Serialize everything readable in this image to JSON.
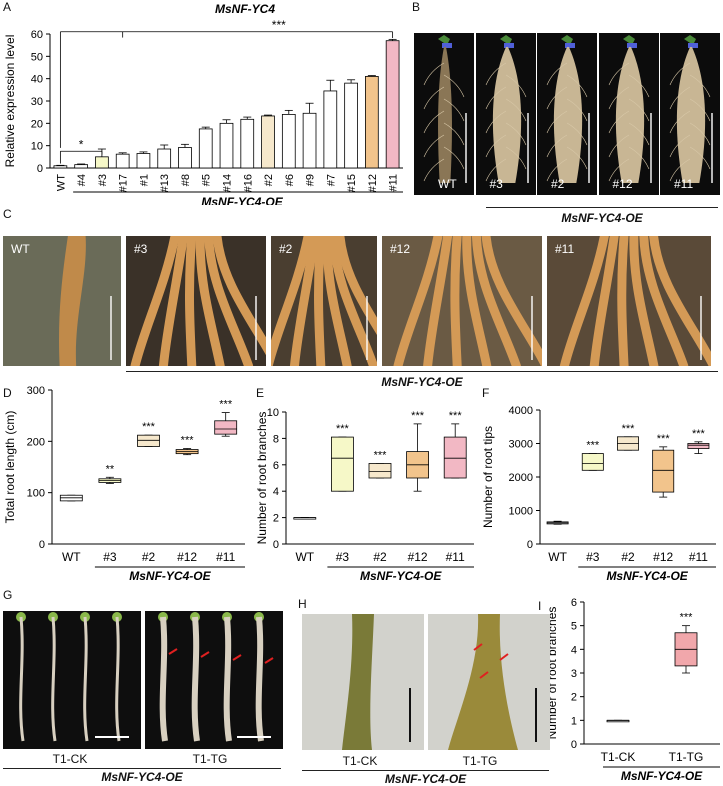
{
  "panel_letters": [
    "A",
    "B",
    "C",
    "D",
    "E",
    "F",
    "G",
    "H",
    "I"
  ],
  "panel_a": {
    "title": "MsNF-YC4",
    "group_label": "MsNF-YC4-OE",
    "sig_wt_3": "*",
    "sig_all": "***"
  },
  "panel_b": {
    "samples": [
      "WT",
      "#3",
      "#2",
      "#12",
      "#11"
    ],
    "group_label": "MsNF-YC4-OE"
  },
  "panel_c": {
    "samples": [
      "WT",
      "#3",
      "#2",
      "#12",
      "#11"
    ],
    "group_label": "MsNF-YC4-OE"
  },
  "panel_g": {
    "samples": [
      "T1-CK",
      "T1-TG"
    ],
    "group_label": "MsNF-YC4-OE"
  },
  "panel_h": {
    "samples": [
      "T1-CK",
      "T1-TG"
    ],
    "group_label": "MsNF-YC4-OE"
  },
  "colors": {
    "WT": "#ffffff",
    "#3": "#f6f8c8",
    "#2": "#f6e8cc",
    "#12": "#f2c48c",
    "#11": "#f2b8c4",
    "T1-TG": "#f1a7ab"
  },
  "chart_data": [
    {
      "id": "A",
      "type": "bar",
      "title": "MsNF-YC4",
      "ylabel": "Relative expression level",
      "ylim": [
        0,
        60
      ],
      "yticks": [
        0,
        10,
        20,
        30,
        40,
        50,
        60
      ],
      "categories": [
        "WT",
        "#4",
        "#3",
        "#17",
        "#1",
        "#13",
        "#8",
        "#5",
        "#14",
        "#16",
        "#2",
        "#6",
        "#9",
        "#7",
        "#15",
        "#12",
        "#11"
      ],
      "values": [
        1,
        1.5,
        5,
        6.2,
        6.5,
        8.5,
        9.2,
        17.5,
        20,
        21.8,
        23.3,
        24,
        24.5,
        34.5,
        38,
        41,
        57
      ],
      "errors": [
        0.2,
        0.3,
        3.5,
        0.6,
        0.7,
        1.8,
        1.4,
        0.8,
        1.6,
        1.0,
        0.4,
        1.8,
        4.5,
        4.8,
        1.5,
        0.4,
        0.6
      ],
      "bar_colors": [
        "#ffffff",
        "#ffffff",
        "#f6f8c8",
        "#ffffff",
        "#ffffff",
        "#ffffff",
        "#ffffff",
        "#ffffff",
        "#ffffff",
        "#ffffff",
        "#f6e8cc",
        "#ffffff",
        "#ffffff",
        "#ffffff",
        "#ffffff",
        "#f2c48c",
        "#f2b8c4"
      ],
      "significance": [
        {
          "label": "*"
        },
        {
          "label": "***"
        }
      ],
      "group_label": "MsNF-YC4-OE"
    },
    {
      "id": "D",
      "type": "box",
      "ylabel": "Total root length (cm)",
      "ylim": [
        0,
        300
      ],
      "yticks": [
        0,
        100,
        200,
        300
      ],
      "categories": [
        "WT",
        "#3",
        "#2",
        "#12",
        "#11"
      ],
      "boxes": [
        {
          "min": 84,
          "q1": 84,
          "median": 90,
          "q3": 95,
          "max": 95
        },
        {
          "min": 118,
          "q1": 120,
          "median": 124,
          "q3": 127,
          "max": 130
        },
        {
          "min": 190,
          "q1": 190,
          "median": 202,
          "q3": 212,
          "max": 212
        },
        {
          "min": 174,
          "q1": 176,
          "median": 180,
          "q3": 184,
          "max": 186
        },
        {
          "min": 210,
          "q1": 214,
          "median": 224,
          "q3": 240,
          "max": 256
        }
      ],
      "significance": [
        "",
        "**",
        "***",
        "***",
        "***"
      ],
      "group_label": "MsNF-YC4-OE"
    },
    {
      "id": "E",
      "type": "box",
      "ylabel": "Number of root branches",
      "ylim": [
        0,
        10
      ],
      "yticks": [
        0,
        2,
        4,
        6,
        8,
        10
      ],
      "categories": [
        "WT",
        "#3",
        "#2",
        "#12",
        "#11"
      ],
      "boxes": [
        {
          "min": 2,
          "q1": 2,
          "median": 2,
          "q3": 2,
          "max": 2
        },
        {
          "min": 4,
          "q1": 4,
          "median": 6.5,
          "q3": 8.1,
          "max": 8.1
        },
        {
          "min": 5,
          "q1": 5,
          "median": 5.5,
          "q3": 6.1,
          "max": 6.1
        },
        {
          "min": 4,
          "q1": 5,
          "median": 6,
          "q3": 7,
          "max": 9.1
        },
        {
          "min": 5,
          "q1": 5,
          "median": 6.5,
          "q3": 8.1,
          "max": 9.1
        }
      ],
      "significance": [
        "",
        "***",
        "***",
        "***",
        "***"
      ],
      "group_label": "MsNF-YC4-OE"
    },
    {
      "id": "F",
      "type": "box",
      "ylabel": "Number of root tips",
      "ylim": [
        0,
        4000
      ],
      "yticks": [
        0,
        1000,
        2000,
        3000,
        4000
      ],
      "categories": [
        "WT",
        "#3",
        "#2",
        "#12",
        "#11"
      ],
      "boxes": [
        {
          "min": 590,
          "q1": 600,
          "median": 630,
          "q3": 660,
          "max": 680
        },
        {
          "min": 2200,
          "q1": 2200,
          "median": 2400,
          "q3": 2700,
          "max": 2700
        },
        {
          "min": 2800,
          "q1": 2800,
          "median": 3000,
          "q3": 3200,
          "max": 3200
        },
        {
          "min": 1400,
          "q1": 1550,
          "median": 2200,
          "q3": 2800,
          "max": 2900
        },
        {
          "min": 2700,
          "q1": 2850,
          "median": 2950,
          "q3": 3000,
          "max": 3050
        }
      ],
      "significance": [
        "",
        "***",
        "***",
        "***",
        "***"
      ],
      "group_label": "MsNF-YC4-OE"
    },
    {
      "id": "I",
      "type": "box",
      "ylabel": "Number of root branches",
      "ylim": [
        0,
        6
      ],
      "yticks": [
        0,
        1,
        2,
        3,
        4,
        5,
        6
      ],
      "categories": [
        "T1-CK",
        "T1-TG"
      ],
      "boxes": [
        {
          "min": 1,
          "q1": 1,
          "median": 1,
          "q3": 1,
          "max": 1
        },
        {
          "min": 3,
          "q1": 3.3,
          "median": 4,
          "q3": 4.7,
          "max": 5
        }
      ],
      "significance": [
        "",
        "***"
      ],
      "group_label": "MsNF-YC4-OE"
    }
  ]
}
